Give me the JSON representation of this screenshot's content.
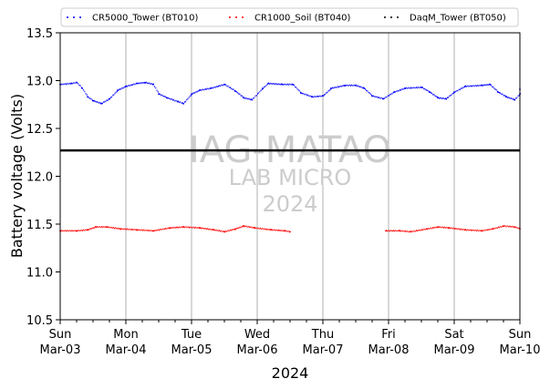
{
  "chart_data": {
    "type": "line",
    "title": "",
    "xlabel": "2024",
    "ylabel": "Battery voltage (Volts)",
    "ylim": [
      10.5,
      13.5
    ],
    "yticks": [
      "10.5",
      "11.0",
      "11.5",
      "12.0",
      "12.5",
      "13.0",
      "13.5"
    ],
    "xlim": [
      "2024-03-03",
      "2024-03-10"
    ],
    "xticks": [
      {
        "day": "Sun",
        "date": "Mar-03"
      },
      {
        "day": "Mon",
        "date": "Mar-04"
      },
      {
        "day": "Tue",
        "date": "Mar-05"
      },
      {
        "day": "Wed",
        "date": "Mar-06"
      },
      {
        "day": "Thu",
        "date": "Mar-07"
      },
      {
        "day": "Fri",
        "date": "Mar-08"
      },
      {
        "day": "Sat",
        "date": "Mar-09"
      },
      {
        "day": "Sun",
        "date": "Mar-10"
      }
    ],
    "grid": "vertical",
    "legend_position": "top",
    "watermark": [
      "IAG-MATAO",
      "LAB MICRO",
      "2024"
    ],
    "reference_line": {
      "value": 12.27,
      "color": "#000000"
    },
    "series": [
      {
        "name": "CR5000_Tower (BT010)",
        "color": "#0000ff",
        "points": [
          [
            "2024-03-03 00:00",
            12.96
          ],
          [
            "2024-03-03 04:00",
            12.97
          ],
          [
            "2024-03-03 06:00",
            12.98
          ],
          [
            "2024-03-03 08:00",
            12.92
          ],
          [
            "2024-03-03 10:00",
            12.83
          ],
          [
            "2024-03-03 12:00",
            12.79
          ],
          [
            "2024-03-03 15:00",
            12.76
          ],
          [
            "2024-03-03 18:00",
            12.81
          ],
          [
            "2024-03-03 21:00",
            12.9
          ],
          [
            "2024-03-04 00:00",
            12.94
          ],
          [
            "2024-03-04 04:00",
            12.97
          ],
          [
            "2024-03-04 07:00",
            12.98
          ],
          [
            "2024-03-04 10:00",
            12.96
          ],
          [
            "2024-03-04 12:00",
            12.86
          ],
          [
            "2024-03-04 15:00",
            12.82
          ],
          [
            "2024-03-04 19:00",
            12.78
          ],
          [
            "2024-03-04 21:00",
            12.76
          ],
          [
            "2024-03-05 00:00",
            12.86
          ],
          [
            "2024-03-05 03:00",
            12.9
          ],
          [
            "2024-03-05 07:00",
            12.92
          ],
          [
            "2024-03-05 12:00",
            12.96
          ],
          [
            "2024-03-05 16:00",
            12.89
          ],
          [
            "2024-03-05 19:00",
            12.82
          ],
          [
            "2024-03-05 22:00",
            12.8
          ],
          [
            "2024-03-06 02:00",
            12.92
          ],
          [
            "2024-03-06 04:00",
            12.97
          ],
          [
            "2024-03-06 09:00",
            12.96
          ],
          [
            "2024-03-06 13:00",
            12.96
          ],
          [
            "2024-03-06 16:00",
            12.87
          ],
          [
            "2024-03-06 20:00",
            12.83
          ],
          [
            "2024-03-07 00:00",
            12.84
          ],
          [
            "2024-03-07 03:00",
            12.92
          ],
          [
            "2024-03-07 08:00",
            12.95
          ],
          [
            "2024-03-07 12:00",
            12.95
          ],
          [
            "2024-03-07 15:00",
            12.92
          ],
          [
            "2024-03-07 18:00",
            12.84
          ],
          [
            "2024-03-07 22:00",
            12.81
          ],
          [
            "2024-03-08 02:00",
            12.88
          ],
          [
            "2024-03-08 06:00",
            12.92
          ],
          [
            "2024-03-08 12:00",
            12.93
          ],
          [
            "2024-03-08 15:00",
            12.88
          ],
          [
            "2024-03-08 18:00",
            12.82
          ],
          [
            "2024-03-08 21:00",
            12.81
          ],
          [
            "2024-03-09 00:00",
            12.88
          ],
          [
            "2024-03-09 04:00",
            12.94
          ],
          [
            "2024-03-09 10:00",
            12.95
          ],
          [
            "2024-03-09 13:00",
            12.96
          ],
          [
            "2024-03-09 16:00",
            12.88
          ],
          [
            "2024-03-09 19:00",
            12.83
          ],
          [
            "2024-03-09 22:00",
            12.8
          ],
          [
            "2024-03-10 00:00",
            12.86
          ],
          [
            "2024-03-10 00:00",
            12.91
          ]
        ]
      },
      {
        "name": "CR1000_Soil (BT040)",
        "color": "#ff0000",
        "points": [
          [
            "2024-03-03 00:00",
            11.43
          ],
          [
            "2024-03-03 06:00",
            11.43
          ],
          [
            "2024-03-03 10:00",
            11.44
          ],
          [
            "2024-03-03 13:00",
            11.47
          ],
          [
            "2024-03-03 17:00",
            11.47
          ],
          [
            "2024-03-03 22:00",
            11.45
          ],
          [
            "2024-03-04 04:00",
            11.44
          ],
          [
            "2024-03-04 10:00",
            11.43
          ],
          [
            "2024-03-04 16:00",
            11.46
          ],
          [
            "2024-03-04 21:00",
            11.47
          ],
          [
            "2024-03-05 03:00",
            11.46
          ],
          [
            "2024-03-05 08:00",
            11.44
          ],
          [
            "2024-03-05 12:00",
            11.42
          ],
          [
            "2024-03-05 16:00",
            11.45
          ],
          [
            "2024-03-05 19:00",
            11.48
          ],
          [
            "2024-03-05 23:00",
            11.46
          ],
          [
            "2024-03-06 05:00",
            11.44
          ],
          [
            "2024-03-06 10:00",
            11.43
          ],
          [
            "2024-03-06 12:00",
            11.42
          ]
        ]
      },
      {
        "name": "CR1000_Soil (BT040)",
        "color": "#ff0000",
        "points": [
          [
            "2024-03-07 23:00",
            11.43
          ],
          [
            "2024-03-08 04:00",
            11.43
          ],
          [
            "2024-03-08 08:00",
            11.42
          ],
          [
            "2024-03-08 14:00",
            11.45
          ],
          [
            "2024-03-08 18:00",
            11.47
          ],
          [
            "2024-03-08 22:00",
            11.46
          ],
          [
            "2024-03-09 04:00",
            11.44
          ],
          [
            "2024-03-09 10:00",
            11.43
          ],
          [
            "2024-03-09 14:00",
            11.45
          ],
          [
            "2024-03-09 18:00",
            11.48
          ],
          [
            "2024-03-09 22:00",
            11.47
          ],
          [
            "2024-03-10 00:00",
            11.45
          ]
        ]
      },
      {
        "name": "DaqM_Tower (BT050)",
        "color": "#000000",
        "points": []
      }
    ]
  }
}
